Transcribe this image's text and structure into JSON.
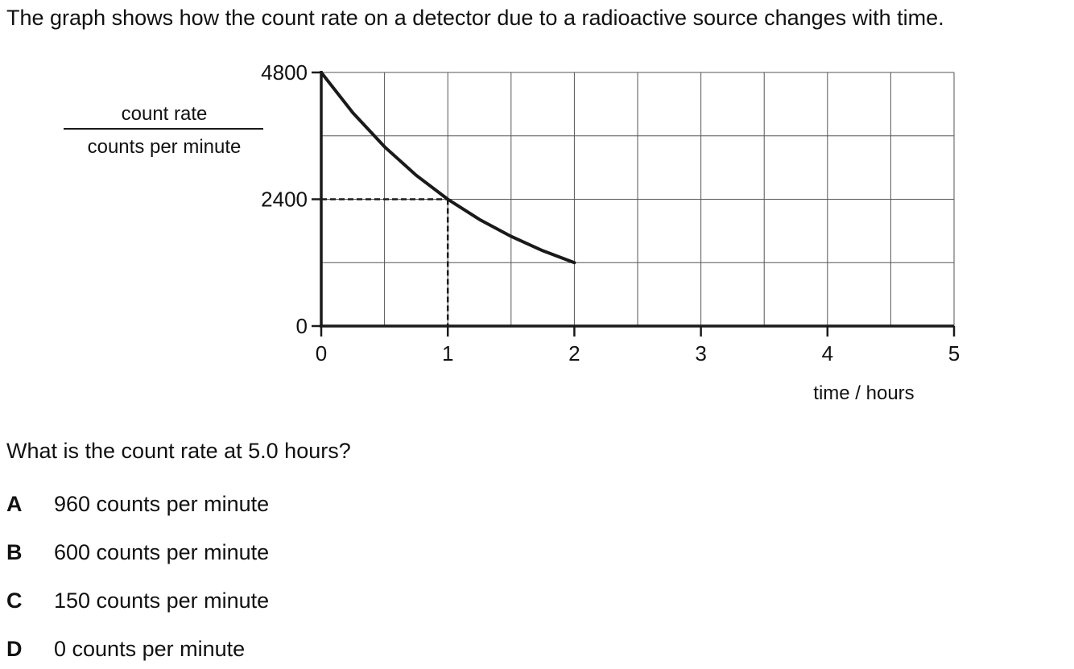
{
  "intro_text": "The graph shows how the count rate on a detector due to a radioactive source changes with time.",
  "question_text": "What is the count rate at 5.0 hours?",
  "options": [
    {
      "letter": "A",
      "text": "960 counts per minute"
    },
    {
      "letter": "B",
      "text": "600 counts per minute"
    },
    {
      "letter": "C",
      "text": "150 counts per minute"
    },
    {
      "letter": "D",
      "text": "0 counts per minute"
    }
  ],
  "chart_data": {
    "type": "line",
    "ylabel_top": "count rate",
    "ylabel_bottom": "counts per minute",
    "xlabel": "time / hours",
    "xlim": [
      0,
      5
    ],
    "ylim": [
      0,
      4800
    ],
    "x_ticks": [
      0,
      1,
      2,
      3,
      4,
      5
    ],
    "y_ticks": [
      0,
      2400,
      4800
    ],
    "x_tick_labels": [
      "0",
      "1",
      "2",
      "3",
      "4",
      "5"
    ],
    "y_tick_labels": [
      "0",
      "2400",
      "4800"
    ],
    "grid": true,
    "grid_x_step": 0.5,
    "grid_y_step": 1200,
    "series": [
      {
        "x": [
          0,
          0.25,
          0.5,
          0.75,
          1.0,
          1.25,
          1.5,
          1.75,
          2.0
        ],
        "y": [
          4800,
          4036,
          3394,
          2854,
          2400,
          2018,
          1697,
          1427,
          1200
        ]
      }
    ],
    "guide_point": {
      "x": 1,
      "y": 2400
    },
    "colors": {
      "line": "#1a1a1a",
      "grid": "#555555",
      "axis": "#1a1a1a"
    }
  }
}
